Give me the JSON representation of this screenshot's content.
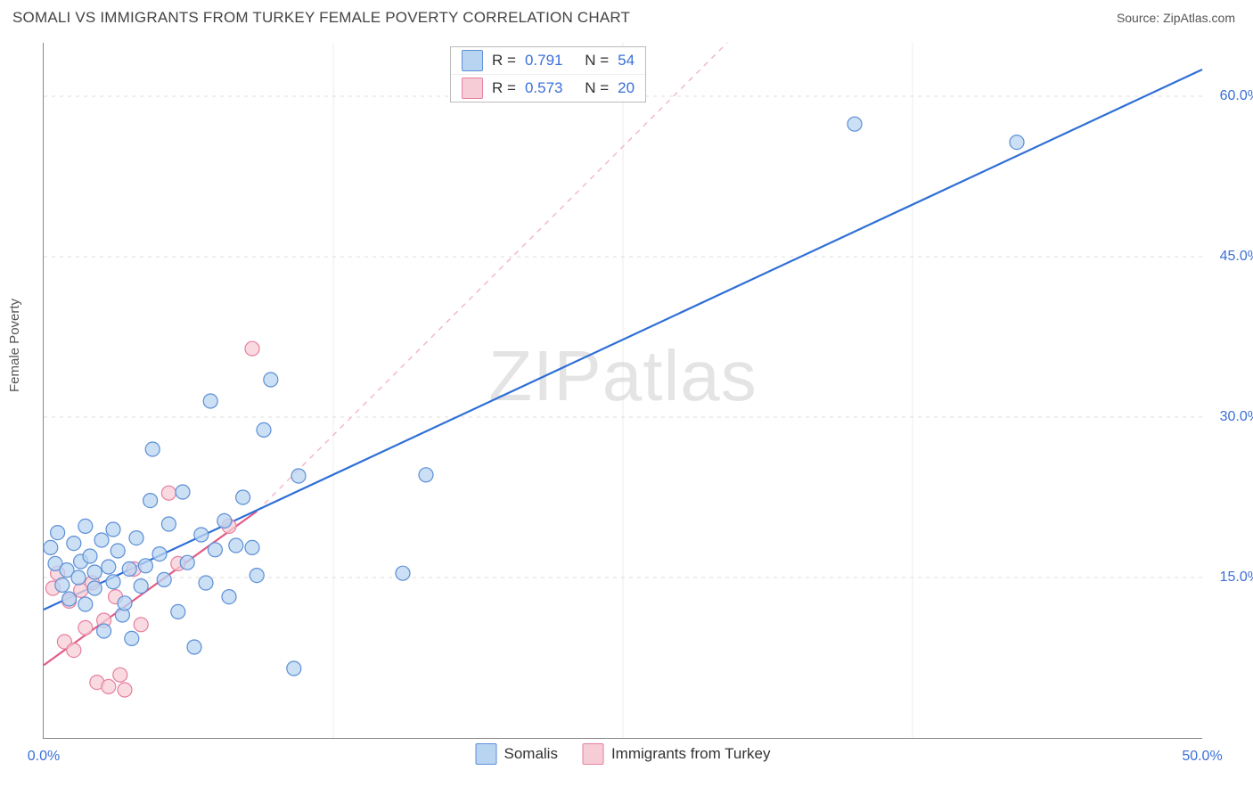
{
  "header": {
    "title": "SOMALI VS IMMIGRANTS FROM TURKEY FEMALE POVERTY CORRELATION CHART",
    "source_label": "Source: ",
    "source_name": "ZipAtlas.com"
  },
  "axes": {
    "ylabel": "Female Poverty",
    "xlim": [
      0,
      50
    ],
    "ylim": [
      0,
      65
    ],
    "xticks": [
      {
        "value": 0,
        "label": "0.0%"
      },
      {
        "value": 50,
        "label": "50.0%"
      }
    ],
    "yticks": [
      {
        "value": 15,
        "label": "15.0%"
      },
      {
        "value": 30,
        "label": "30.0%"
      },
      {
        "value": 45,
        "label": "45.0%"
      },
      {
        "value": 60,
        "label": "60.0%"
      }
    ],
    "grid_color": "#dddddd",
    "axis_color": "#888888",
    "vgrid_positions": [
      12.5,
      25,
      37.5
    ]
  },
  "watermark": {
    "zip": "ZIP",
    "atlas": "atlas"
  },
  "legend_top": {
    "r_label": "R  =",
    "n_label": "N  =",
    "rows": [
      {
        "swatch_fill": "#b9d4f1",
        "swatch_border": "#5b8fd6",
        "r": "0.791",
        "n": "54"
      },
      {
        "swatch_fill": "#f6cdd6",
        "swatch_border": "#e77fa0",
        "r": "0.573",
        "n": "20"
      }
    ]
  },
  "legend_bottom": {
    "items": [
      {
        "swatch_fill": "#b9d4f1",
        "swatch_border": "#5b8fd6",
        "label": "Somalis"
      },
      {
        "swatch_fill": "#f6cdd6",
        "swatch_border": "#e77fa0",
        "label": "Immigrants from Turkey"
      }
    ]
  },
  "series": {
    "somalis": {
      "marker_fill": "#b9d4f1",
      "marker_stroke": "#5b8fd6",
      "marker_opacity": 0.75,
      "marker_radius": 8,
      "trend_color": "#2f6fd6",
      "trend_width": 2.2,
      "trend_dashed_color": "#f3b9c6",
      "trend_start": {
        "x": 0,
        "y": 12.0
      },
      "trend_end": {
        "x": 50,
        "y": 62.5
      },
      "dashed_start": {
        "x": 9.2,
        "y": 21.2
      },
      "dashed_end": {
        "x": 29.5,
        "y": 65.0
      },
      "points": [
        {
          "x": 0.3,
          "y": 17.8
        },
        {
          "x": 0.5,
          "y": 16.3
        },
        {
          "x": 0.6,
          "y": 19.2
        },
        {
          "x": 0.8,
          "y": 14.3
        },
        {
          "x": 1.0,
          "y": 15.7
        },
        {
          "x": 1.1,
          "y": 13.0
        },
        {
          "x": 1.3,
          "y": 18.2
        },
        {
          "x": 1.5,
          "y": 15.0
        },
        {
          "x": 1.6,
          "y": 16.5
        },
        {
          "x": 1.8,
          "y": 12.5
        },
        {
          "x": 1.8,
          "y": 19.8
        },
        {
          "x": 2.0,
          "y": 17.0
        },
        {
          "x": 2.2,
          "y": 15.5
        },
        {
          "x": 2.2,
          "y": 14.0
        },
        {
          "x": 2.5,
          "y": 18.5
        },
        {
          "x": 2.6,
          "y": 10.0
        },
        {
          "x": 2.8,
          "y": 16.0
        },
        {
          "x": 3.0,
          "y": 19.5
        },
        {
          "x": 3.0,
          "y": 14.6
        },
        {
          "x": 3.2,
          "y": 17.5
        },
        {
          "x": 3.4,
          "y": 11.5
        },
        {
          "x": 3.5,
          "y": 12.6
        },
        {
          "x": 3.7,
          "y": 15.8
        },
        {
          "x": 3.8,
          "y": 9.3
        },
        {
          "x": 4.0,
          "y": 18.7
        },
        {
          "x": 4.2,
          "y": 14.2
        },
        {
          "x": 4.4,
          "y": 16.1
        },
        {
          "x": 4.6,
          "y": 22.2
        },
        {
          "x": 4.7,
          "y": 27.0
        },
        {
          "x": 5.0,
          "y": 17.2
        },
        {
          "x": 5.2,
          "y": 14.8
        },
        {
          "x": 5.4,
          "y": 20.0
        },
        {
          "x": 5.8,
          "y": 11.8
        },
        {
          "x": 6.0,
          "y": 23.0
        },
        {
          "x": 6.2,
          "y": 16.4
        },
        {
          "x": 6.5,
          "y": 8.5
        },
        {
          "x": 6.8,
          "y": 19.0
        },
        {
          "x": 7.0,
          "y": 14.5
        },
        {
          "x": 7.2,
          "y": 31.5
        },
        {
          "x": 7.4,
          "y": 17.6
        },
        {
          "x": 7.8,
          "y": 20.3
        },
        {
          "x": 8.0,
          "y": 13.2
        },
        {
          "x": 8.3,
          "y": 18.0
        },
        {
          "x": 8.6,
          "y": 22.5
        },
        {
          "x": 9.0,
          "y": 17.8
        },
        {
          "x": 9.2,
          "y": 15.2
        },
        {
          "x": 9.5,
          "y": 28.8
        },
        {
          "x": 9.8,
          "y": 33.5
        },
        {
          "x": 10.8,
          "y": 6.5
        },
        {
          "x": 11.0,
          "y": 24.5
        },
        {
          "x": 15.5,
          "y": 15.4
        },
        {
          "x": 16.5,
          "y": 24.6
        },
        {
          "x": 35.0,
          "y": 57.4
        },
        {
          "x": 42.0,
          "y": 55.7
        }
      ]
    },
    "turkey": {
      "marker_fill": "#f6cdd6",
      "marker_stroke": "#e77fa0",
      "marker_opacity": 0.75,
      "marker_radius": 8,
      "trend_color": "#e05b86",
      "trend_width": 2.2,
      "trend_start": {
        "x": 0,
        "y": 6.8
      },
      "trend_end": {
        "x": 9.2,
        "y": 21.2
      },
      "points": [
        {
          "x": 0.4,
          "y": 14.0
        },
        {
          "x": 0.6,
          "y": 15.4
        },
        {
          "x": 0.9,
          "y": 9.0
        },
        {
          "x": 1.1,
          "y": 12.8
        },
        {
          "x": 1.3,
          "y": 8.2
        },
        {
          "x": 1.6,
          "y": 13.8
        },
        {
          "x": 1.8,
          "y": 10.3
        },
        {
          "x": 2.1,
          "y": 14.5
        },
        {
          "x": 2.3,
          "y": 5.2
        },
        {
          "x": 2.6,
          "y": 11.0
        },
        {
          "x": 2.8,
          "y": 4.8
        },
        {
          "x": 3.1,
          "y": 13.2
        },
        {
          "x": 3.3,
          "y": 5.9
        },
        {
          "x": 3.5,
          "y": 4.5
        },
        {
          "x": 3.9,
          "y": 15.8
        },
        {
          "x": 4.2,
          "y": 10.6
        },
        {
          "x": 5.4,
          "y": 22.9
        },
        {
          "x": 5.8,
          "y": 16.3
        },
        {
          "x": 8.0,
          "y": 19.8
        },
        {
          "x": 9.0,
          "y": 36.4
        }
      ]
    }
  }
}
